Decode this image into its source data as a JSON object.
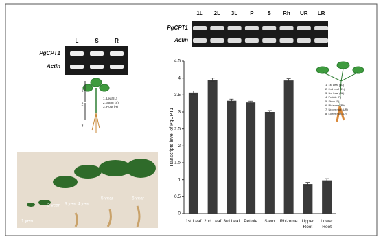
{
  "left_gel": {
    "lanes": [
      "L",
      "S",
      "R"
    ],
    "rows": [
      "PgCPT1",
      "Actin"
    ]
  },
  "plant_diagram": {
    "numbers": [
      "1",
      "2",
      "3"
    ],
    "labels": [
      "1. Leaf (L)",
      "2. Stem (S)",
      "3. Root (R)"
    ]
  },
  "photo": {
    "labels": [
      "1 year",
      "2 year",
      "3 year",
      "4 year",
      "5 year",
      "6 year"
    ]
  },
  "right_gel": {
    "lanes": [
      "1L",
      "2L",
      "3L",
      "P",
      "S",
      "Rh",
      "UR",
      "LR"
    ],
    "rows": [
      "PgCPT1",
      "Actin"
    ]
  },
  "chart_data": {
    "type": "bar",
    "y_label": "Transcripts level of PgCPT1",
    "categories": [
      "1st Leaf",
      "2nd Leaf",
      "3rd Leaf",
      "Petiole",
      "Stem",
      "Rhizome",
      "Upper Root",
      "Lower Root"
    ],
    "values": [
      3.57,
      3.95,
      3.33,
      3.28,
      3.0,
      3.93,
      0.87,
      0.98
    ],
    "errors": [
      0.05,
      0.05,
      0.05,
      0.04,
      0.04,
      0.05,
      0.05,
      0.05
    ],
    "color": "#3a3a3a",
    "ylim": [
      0,
      4.5
    ],
    "yticks": [
      0,
      0.5,
      1,
      1.5,
      2,
      2.5,
      3,
      3.5,
      4,
      4.5
    ],
    "inset_labels": [
      "1. 1st Leaf (1L)",
      "2. 2nd Leaf (2L)",
      "3. 3rd Leaf (3L)",
      "4. Petiole (P)",
      "5. Stem (S)",
      "6. Rhizome (Rh)",
      "7. Upper root (UR)",
      "8. Lower root (LR)"
    ]
  }
}
